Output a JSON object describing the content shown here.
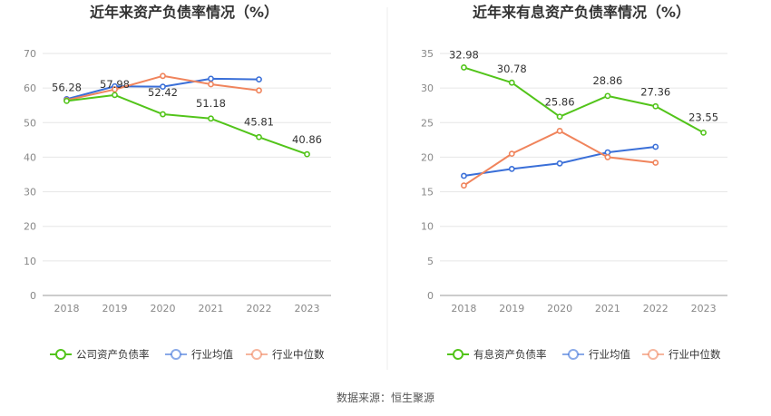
{
  "source_label": "数据来源：恒生聚源",
  "colors": {
    "company": "#52c41a",
    "avg": "#3a6fd8",
    "median": "#f0845c"
  },
  "chart_data": [
    {
      "type": "line",
      "title": "近年来资产负债率情况（%）",
      "x": [
        "2018",
        "2019",
        "2020",
        "2021",
        "2022",
        "2023"
      ],
      "ylim": [
        0,
        70
      ],
      "yticks": [
        0,
        10,
        20,
        30,
        40,
        50,
        60,
        70
      ],
      "grid": true,
      "legend_position": "bottom",
      "series": [
        {
          "name": "公司资产负债率",
          "key": "company",
          "values": [
            56.28,
            57.98,
            52.42,
            51.18,
            45.81,
            40.86
          ],
          "labels": [
            "56.28",
            "57.98",
            "52.42",
            "51.18",
            "45.81",
            "40.86"
          ]
        },
        {
          "name": "行业均值",
          "key": "avg",
          "values": [
            56.8,
            60.5,
            60.4,
            62.7,
            62.5,
            null
          ]
        },
        {
          "name": "行业中位数",
          "key": "median",
          "values": [
            56.5,
            59.6,
            63.5,
            61.1,
            59.3,
            null
          ]
        }
      ]
    },
    {
      "type": "line",
      "title": "近年来有息资产负债率情况（%）",
      "x": [
        "2018",
        "2019",
        "2020",
        "2021",
        "2022",
        "2023"
      ],
      "ylim": [
        0,
        35
      ],
      "yticks": [
        0,
        5,
        10,
        15,
        20,
        25,
        30,
        35
      ],
      "grid": true,
      "legend_position": "bottom",
      "series": [
        {
          "name": "有息资产负债率",
          "key": "company",
          "values": [
            32.98,
            30.78,
            25.86,
            28.86,
            27.36,
            23.55
          ],
          "labels": [
            "32.98",
            "30.78",
            "25.86",
            "28.86",
            "27.36",
            "23.55"
          ]
        },
        {
          "name": "行业均值",
          "key": "avg",
          "values": [
            17.3,
            18.3,
            19.1,
            20.7,
            21.5,
            null
          ]
        },
        {
          "name": "行业中位数",
          "key": "median",
          "values": [
            15.9,
            20.5,
            23.8,
            20.0,
            19.2,
            null
          ]
        }
      ]
    }
  ]
}
